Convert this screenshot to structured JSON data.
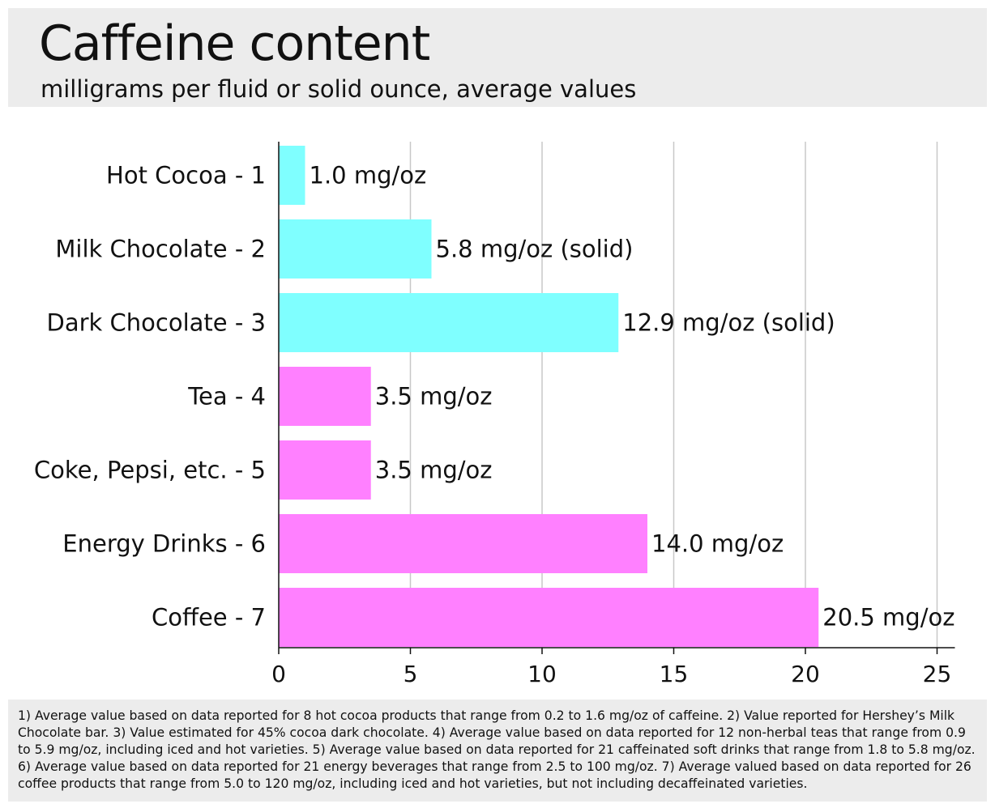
{
  "header": {
    "title": "Caffeine content",
    "subtitle": "milligrams per fluid or solid ounce, average values"
  },
  "chart_data": {
    "type": "bar",
    "orientation": "horizontal",
    "categories": [
      "Hot Cocoa - 1",
      "Milk Chocolate - 2",
      "Dark Chocolate - 3",
      "Tea - 4",
      "Coke, Pepsi, etc. - 5",
      "Energy Drinks - 6",
      "Coffee - 7"
    ],
    "values": [
      1.0,
      5.8,
      12.9,
      3.5,
      3.5,
      14.0,
      20.5
    ],
    "data_labels": [
      "1.0 mg/oz",
      "5.8 mg/oz (solid)",
      "12.9 mg/oz (solid)",
      "3.5 mg/oz",
      "3.5 mg/oz",
      "14.0 mg/oz",
      "20.5 mg/oz"
    ],
    "bar_colors": [
      "#7fffff",
      "#7fffff",
      "#7fffff",
      "#ff80ff",
      "#ff80ff",
      "#ff80ff",
      "#ff80ff"
    ],
    "title": "Caffeine content",
    "subtitle": "milligrams per fluid or solid ounce, average values",
    "xlim": [
      0,
      25
    ],
    "xticks": [
      0,
      5,
      10,
      15,
      20,
      25
    ],
    "xtick_labels": [
      "0",
      "5",
      "10",
      "15",
      "20",
      "25"
    ],
    "grid": "vertical",
    "legend": "none"
  },
  "footnotes": {
    "text": "1) Average value based on data reported for 8 hot cocoa products that range from 0.2 to 1.6 mg/oz of caffeine.  2) Value reported for Hershey’s Milk Chocolate bar.  3) Value estimated for 45% cocoa dark chocolate.  4) Average value based on data reported for 12 non-herbal teas that range from 0.9 to 5.9 mg/oz, including iced and hot varieties.  5) Average value based on data reported for 21 caffeinated soft drinks that range from 1.8 to 5.8 mg/oz.  6) Average value based on data reported for 21 energy beverages that range from 2.5 to 100 mg/oz.  7) Average valued based on data reported for 26 coffee products that range from 5.0 to 120 mg/oz, including iced and hot varieties, but not including decaffeinated varieties."
  }
}
